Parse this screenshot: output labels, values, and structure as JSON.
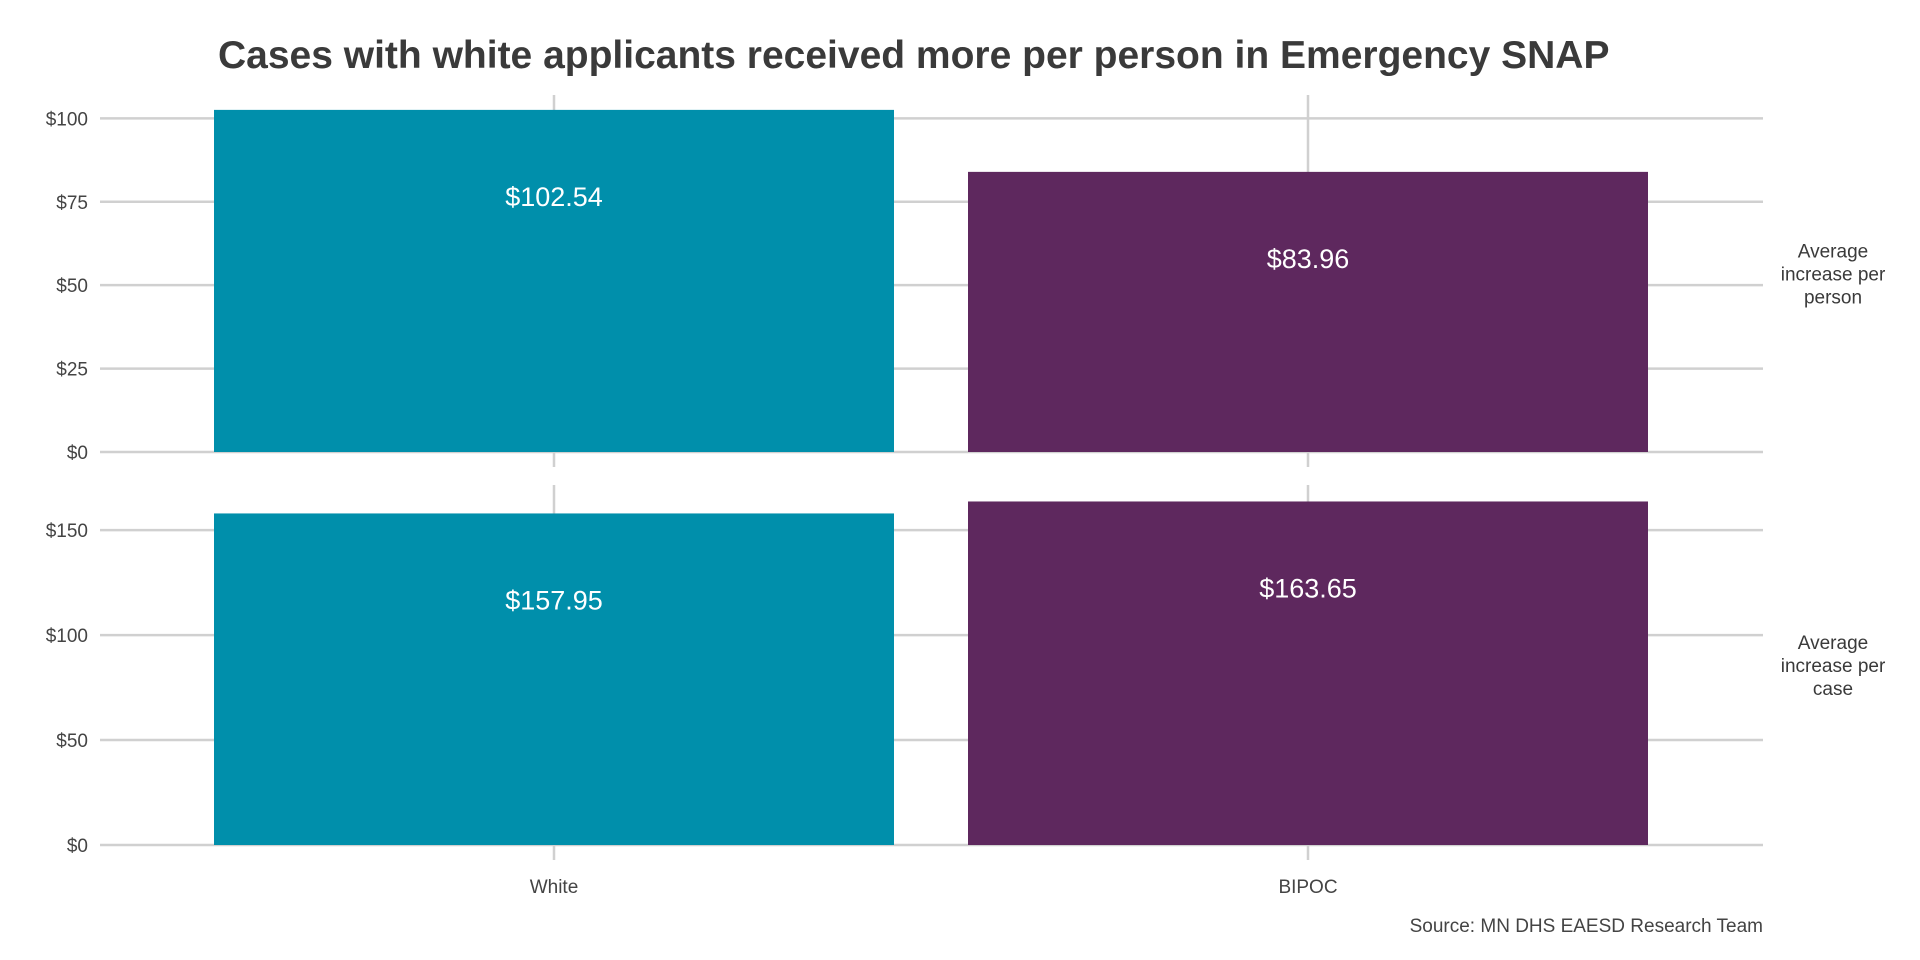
{
  "chart_data": {
    "type": "bar",
    "title": "Cases with white applicants received more per person in Emergency SNAP",
    "caption": "Source: MN DHS EAESD Research Team",
    "categories": [
      "White",
      "BIPOC"
    ],
    "colors": {
      "White": "#008FAB",
      "BIPOC": "#5E285E"
    },
    "grid": true,
    "legend": "none",
    "panels": [
      {
        "facet_label": "Average increase per person",
        "values": [
          102.54,
          83.96
        ],
        "value_labels": [
          "$102.54",
          "$83.96"
        ],
        "y_ticks": [
          0,
          25,
          50,
          75,
          100
        ],
        "y_tick_labels": [
          "$0",
          "$25",
          "$50",
          "$75",
          "$100"
        ],
        "ylim": [
          0,
          107
        ]
      },
      {
        "facet_label": "Average increase per case",
        "values": [
          157.95,
          163.65
        ],
        "value_labels": [
          "$157.95",
          "$163.65"
        ],
        "y_ticks": [
          0,
          50,
          100,
          150
        ],
        "y_tick_labels": [
          "$0",
          "$50",
          "$100",
          "$150"
        ],
        "ylim": [
          0,
          171.5
        ]
      }
    ]
  }
}
